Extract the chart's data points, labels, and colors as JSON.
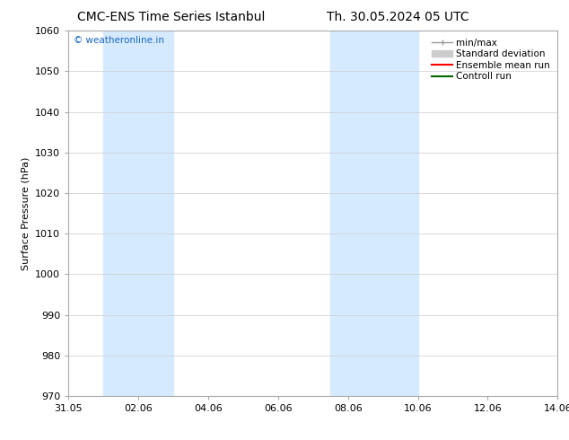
{
  "title_left": "CMC-ENS Time Series Istanbul",
  "title_right": "Th. 30.05.2024 05 UTC",
  "ylabel": "Surface Pressure (hPa)",
  "ylim": [
    970,
    1060
  ],
  "yticks": [
    970,
    980,
    990,
    1000,
    1010,
    1020,
    1030,
    1040,
    1050,
    1060
  ],
  "xlim": [
    0,
    14
  ],
  "xtick_labels": [
    "31.05",
    "02.06",
    "04.06",
    "06.06",
    "08.06",
    "10.06",
    "12.06",
    "14.06"
  ],
  "xtick_positions": [
    0,
    2,
    4,
    6,
    8,
    10,
    12,
    14
  ],
  "shaded_bands": [
    {
      "start": 1.0,
      "end": 3.0
    },
    {
      "start": 7.5,
      "end": 10.0
    }
  ],
  "shaded_color": "#d6eaff",
  "watermark_text": "© weatheronline.in",
  "watermark_color": "#1565c0",
  "background_color": "#ffffff",
  "grid_color": "#cccccc",
  "title_fontsize": 10,
  "label_fontsize": 8,
  "tick_fontsize": 8,
  "legend_fontsize": 7.5
}
